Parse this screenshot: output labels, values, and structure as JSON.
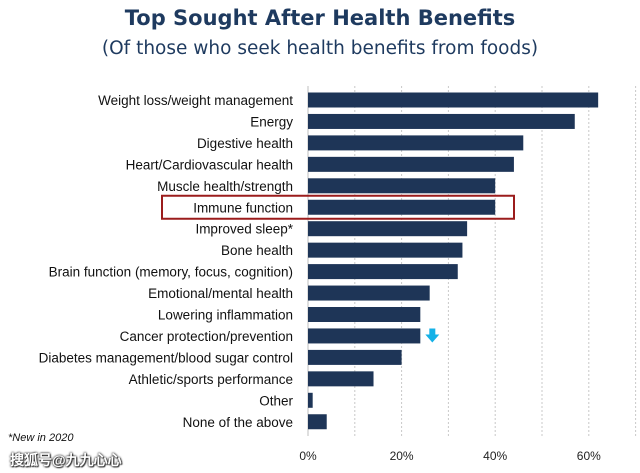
{
  "title": "Top Sought After Health Benefits",
  "subtitle": "(Of those who seek health benefits from foods)",
  "footnote": "*New in 2020",
  "watermark": "搜狐号@九九心心",
  "colors": {
    "bar": "#1e3557",
    "highlight_box": "#9b1c1c",
    "arrow": "#14b1e7",
    "title": "#1e3a5f"
  },
  "chart_data": {
    "type": "bar",
    "orientation": "horizontal",
    "categories": [
      "Weight loss/weight management",
      "Energy",
      "Digestive health",
      "Heart/Cardiovascular health",
      "Muscle health/strength",
      "Immune function",
      "Improved sleep*",
      "Bone health",
      "Brain function (memory, focus, cognition)",
      "Emotional/mental health",
      "Lowering inflammation",
      "Cancer protection/prevention",
      "Diabetes management/blood sugar control",
      "Athletic/sports performance",
      "Other",
      "None of the above"
    ],
    "values": [
      62,
      57,
      46,
      44,
      40,
      40,
      34,
      33,
      32,
      26,
      24,
      24,
      20,
      14,
      1,
      4
    ],
    "unit": "%",
    "xlim": [
      0,
      70
    ],
    "xticks": [
      "0%",
      "20%",
      "40%",
      "60%"
    ],
    "xtick_values": [
      0,
      20,
      40,
      60
    ],
    "gridlines": "vertical-dashed",
    "highlighted_category": "Immune function",
    "down_arrow_category": "Cancer protection/prevention"
  }
}
